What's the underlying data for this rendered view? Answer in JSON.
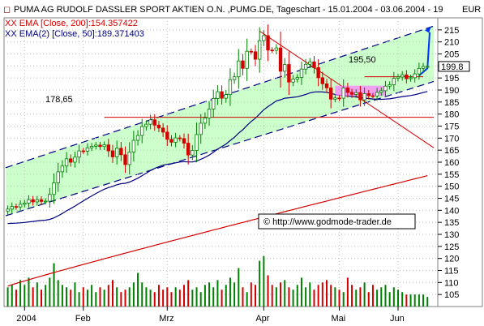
{
  "header": {
    "title": "PUMA AG RUDOLF DASSLER SPORT AKTIEN O.N. ,PUMG.DE, Tageschart - 15.01.2004 - 03.06.2004 - 19",
    "currency": "EUR"
  },
  "legend": [
    {
      "label": "XX EMA [Close, 200]:154.357422",
      "color": "#d40000"
    },
    {
      "label": "XX EMA(2) [Close, 50]:189.371403",
      "color": "#000080"
    }
  ],
  "copyright": "© http://www.godmode-trader.de",
  "colors": {
    "up": "#008000",
    "down": "#d40000",
    "ema50": "#000080",
    "ema200": "#d40000",
    "channel_fill": "#ccffcc",
    "channel_line": "#000080",
    "projection": "#0033ff",
    "consolidation": "#ff80ff",
    "grid": "#c0c0c0"
  },
  "chart_data": {
    "type": "candlestick",
    "ylim": [
      100,
      220
    ],
    "yticks": [
      105,
      110,
      115,
      120,
      125,
      130,
      135,
      140,
      145,
      150,
      155,
      160,
      165,
      170,
      175,
      180,
      185,
      190,
      195,
      200,
      205,
      210,
      215
    ],
    "last_price_label": "199.8",
    "last_price": 199.8,
    "xticks": [
      {
        "index": 4,
        "label": "2004"
      },
      {
        "index": 18,
        "label": "Feb"
      },
      {
        "index": 38,
        "label": "Mrz"
      },
      {
        "index": 61,
        "label": "Apr"
      },
      {
        "index": 79,
        "label": "Mai"
      },
      {
        "index": 93,
        "label": "Jun"
      }
    ],
    "n_bars": 101,
    "closes": [
      140.5,
      141.6,
      141.4,
      142.5,
      143.0,
      144.4,
      143.5,
      144.4,
      143.7,
      143.8,
      146.6,
      151.4,
      156.0,
      158.4,
      161.4,
      160.0,
      162.1,
      164.7,
      164.6,
      166.0,
      166.6,
      167.1,
      166.5,
      167.2,
      164.7,
      162.2,
      165.8,
      163.1,
      159.0,
      164.2,
      169.1,
      171.1,
      174.8,
      175.8,
      177.6,
      175.4,
      174.2,
      172.5,
      169.5,
      168.3,
      170.1,
      169.8,
      167.9,
      163.0,
      164.9,
      171.5,
      176.2,
      178.4,
      182.1,
      186.5,
      189.3,
      186.6,
      188.1,
      194.3,
      195.5,
      202.1,
      199.0,
      206.1,
      205.9,
      202.8,
      210.5,
      212.6,
      206.6,
      206.5,
      207.5,
      197.8,
      200.6,
      193.3,
      194.5,
      195.2,
      198.7,
      200.7,
      201.7,
      199.3,
      195.1,
      192.6,
      190.9,
      186.2,
      186.7,
      186.6,
      190.9,
      189.0,
      188.2,
      188.9,
      185.9,
      188.5,
      187.6,
      187.5,
      189.0,
      189.7,
      191.6,
      192.2,
      194.9,
      195.4,
      196.3,
      194.7,
      195.1,
      196.7,
      199.0,
      199.8,
      199.8
    ],
    "volume": [
      108,
      109,
      107,
      111,
      109,
      112,
      108,
      110,
      107,
      109,
      112,
      118,
      111,
      109,
      108,
      107,
      110,
      106,
      108,
      107,
      109,
      106,
      108,
      107,
      109,
      111,
      108,
      106,
      107,
      108,
      110,
      114,
      110,
      108,
      107,
      106,
      109,
      107,
      108,
      106,
      108,
      107,
      109,
      111,
      107,
      108,
      106,
      109,
      110,
      108,
      111,
      107,
      109,
      112,
      110,
      116,
      108,
      106,
      110,
      109,
      119,
      121,
      113,
      109,
      108,
      110,
      111,
      108,
      107,
      109,
      112,
      108,
      110,
      107,
      109,
      110,
      111,
      109,
      108,
      107,
      106,
      112,
      109,
      107,
      108,
      110,
      106,
      109,
      107,
      108,
      109,
      106,
      108,
      107,
      106,
      105,
      105,
      105,
      105,
      105,
      104
    ],
    "ema200_start": 108.5,
    "ema200_end": 154.4,
    "ema50_start": 134.5,
    "ema50_end": 189.4,
    "annotations": [
      {
        "label": "178,65",
        "value": 178.65
      },
      {
        "label": "195,50",
        "value": 195.5
      }
    ]
  }
}
